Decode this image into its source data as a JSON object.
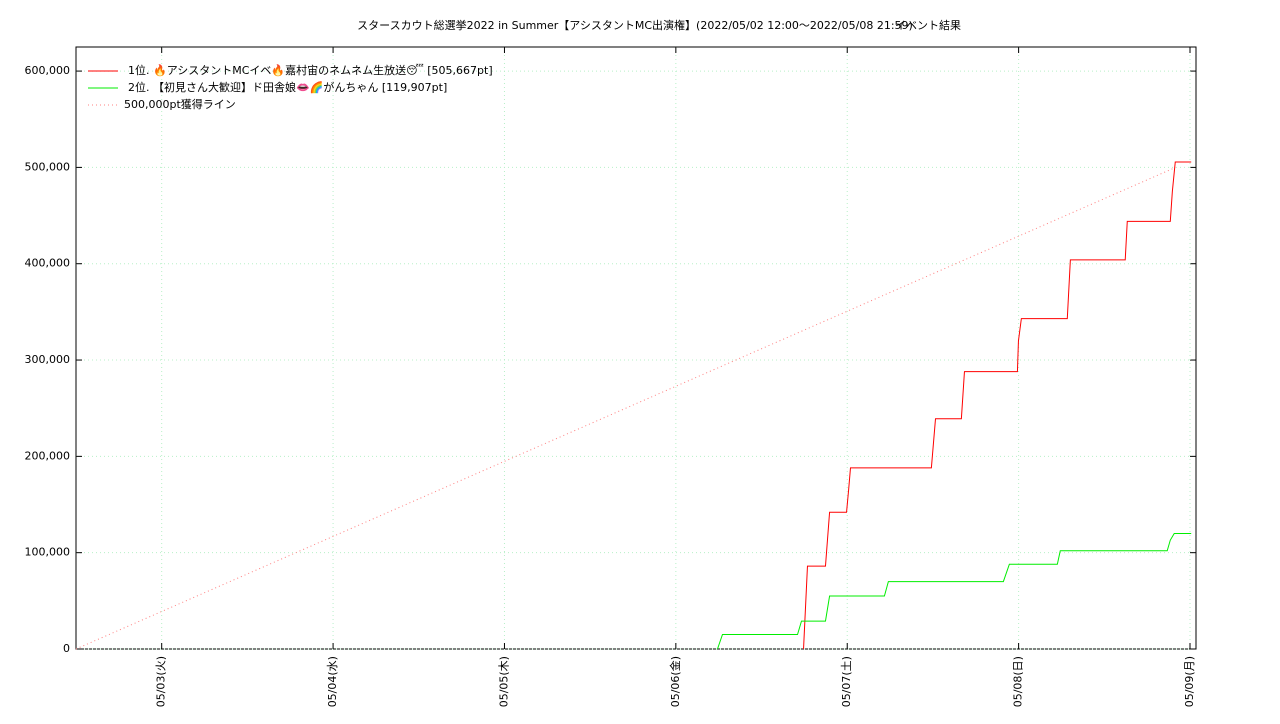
{
  "chart_data": {
    "type": "line",
    "title": "スタースカウト総選挙2022 in Summer【アシスタントMC出演権】(2022/05/02 12:00～2022/05/08 21:59)",
    "subtitle": "イベント結果",
    "xlim": [
      2.5,
      9.035
    ],
    "xticks": [
      {
        "value": 3,
        "label": "05/03(火)"
      },
      {
        "value": 4,
        "label": "05/04(水)"
      },
      {
        "value": 5,
        "label": "05/05(木)"
      },
      {
        "value": 6,
        "label": "05/06(金)"
      },
      {
        "value": 7,
        "label": "05/07(土)"
      },
      {
        "value": 8,
        "label": "05/08(日)"
      },
      {
        "value": 9,
        "label": "05/09(月)"
      }
    ],
    "ylim": [
      0,
      625000
    ],
    "yticks": [
      0,
      {
        "value": 100000,
        "label": "100,000"
      },
      {
        "value": 200000,
        "label": "200,000"
      },
      {
        "value": 300000,
        "label": "300,000"
      },
      {
        "value": 400000,
        "label": "400,000"
      },
      {
        "value": 500000,
        "label": "500,000"
      },
      {
        "value": 600000,
        "label": "600,000"
      }
    ],
    "grid": true,
    "legend": "top-left",
    "series": [
      {
        "name": "1位. 🔥アシスタントMCイベ🔥嘉村宙のネムネム生放送😴 [505,667pt]",
        "color": "#ff0000",
        "style": "solid",
        "x": [
          6.745,
          6.768,
          6.873,
          6.897,
          6.996,
          7.008,
          7.019,
          7.491,
          7.515,
          7.666,
          7.684,
          7.993,
          7.999,
          8.016,
          8.284,
          8.302,
          8.622,
          8.634,
          8.885,
          8.897,
          8.914,
          9.007
        ],
        "values": [
          0,
          86000,
          86000,
          142000,
          142000,
          165000,
          188000,
          188000,
          239000,
          239000,
          288000,
          288000,
          320000,
          343000,
          343000,
          404000,
          404000,
          444000,
          444000,
          475000,
          505667,
          505667
        ]
      },
      {
        "name": "2位. 【初見さん大歓迎】ド田舎娘👄🌈がんちゃん [119,907pt]",
        "color": "#00ee00",
        "style": "solid",
        "x": [
          6.243,
          6.272,
          6.71,
          6.733,
          6.873,
          6.897,
          7.217,
          7.24,
          7.911,
          7.946,
          8.226,
          8.243,
          8.867,
          8.885,
          8.908,
          9.007
        ],
        "values": [
          0,
          15000,
          15000,
          29000,
          29000,
          55000,
          55000,
          70000,
          70000,
          88000,
          88000,
          102000,
          102000,
          113000,
          119907,
          119907
        ]
      },
      {
        "name": "500,000pt獲得ライン",
        "color": "#ff8080",
        "style": "dotted",
        "x": [
          2.5,
          8.916
        ],
        "values": [
          0,
          500000
        ]
      }
    ]
  }
}
